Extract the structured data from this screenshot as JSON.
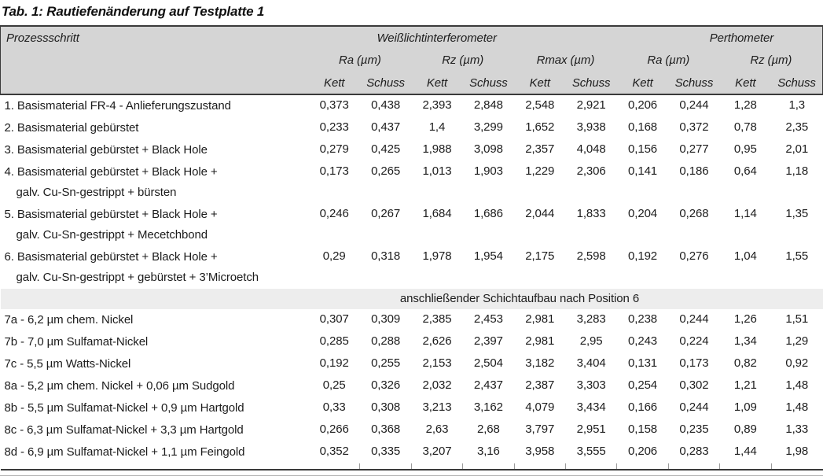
{
  "title": "Tab. 1: Rautiefenänderung auf Testplatte 1",
  "header": {
    "process_step": "Prozessschritt",
    "groups": [
      {
        "label": "Weißlichtinterferometer",
        "metrics": [
          "Ra (µm)",
          "Rz (µm)",
          "Rmax (µm)"
        ]
      },
      {
        "label": "Perthometer",
        "metrics": [
          "Ra (µm)",
          "Rz (µm)"
        ]
      }
    ],
    "kett": "Kett",
    "schuss": "Schuss"
  },
  "divider": {
    "label": "anschließender Schichtaufbau nach Position 6"
  },
  "rows_top": [
    {
      "label_lines": [
        "1. Basismaterial FR-4 - Anlieferungszustand"
      ],
      "values": [
        "0,373",
        "0,438",
        "2,393",
        "2,848",
        "2,548",
        "2,921",
        "0,206",
        "0,244",
        "1,28",
        "1,3"
      ]
    },
    {
      "label_lines": [
        "2. Basismaterial gebürstet"
      ],
      "values": [
        "0,233",
        "0,437",
        "1,4",
        "3,299",
        "1,652",
        "3,938",
        "0,168",
        "0,372",
        "0,78",
        "2,35"
      ]
    },
    {
      "label_lines": [
        "3. Basismaterial gebürstet + Black Hole"
      ],
      "values": [
        "0,279",
        "0,425",
        "1,988",
        "3,098",
        "2,357",
        "4,048",
        "0,156",
        "0,277",
        "0,95",
        "2,01"
      ]
    },
    {
      "label_lines": [
        "4. Basismaterial gebürstet + Black Hole +",
        "galv. Cu-Sn-gestrippt + bürsten"
      ],
      "values": [
        "0,173",
        "0,265",
        "1,013",
        "1,903",
        "1,229",
        "2,306",
        "0,141",
        "0,186",
        "0,64",
        "1,18"
      ]
    },
    {
      "label_lines": [
        "5. Basismaterial gebürstet + Black Hole +",
        "galv. Cu-Sn-gestrippt + Mecetchbond"
      ],
      "values": [
        "0,246",
        "0,267",
        "1,684",
        "1,686",
        "2,044",
        "1,833",
        "0,204",
        "0,268",
        "1,14",
        "1,35"
      ]
    },
    {
      "label_lines": [
        "6. Basismaterial gebürstet + Black Hole +",
        "galv. Cu-Sn-gestrippt + gebürstet + 3’Microetch"
      ],
      "values": [
        "0,29",
        "0,318",
        "1,978",
        "1,954",
        "2,175",
        "2,598",
        "0,192",
        "0,276",
        "1,04",
        "1,55"
      ]
    }
  ],
  "rows_bottom": [
    {
      "label_lines": [
        "7a - 6,2 µm chem. Nickel"
      ],
      "values": [
        "0,307",
        "0,309",
        "2,385",
        "2,453",
        "2,981",
        "3,283",
        "0,238",
        "0,244",
        "1,26",
        "1,51"
      ]
    },
    {
      "label_lines": [
        "7b - 7,0 µm Sulfamat-Nickel"
      ],
      "values": [
        "0,285",
        "0,288",
        "2,626",
        "2,397",
        "2,981",
        "2,95",
        "0,243",
        "0,224",
        "1,34",
        "1,29"
      ]
    },
    {
      "label_lines": [
        "7c - 5,5 µm Watts-Nickel"
      ],
      "values": [
        "0,192",
        "0,255",
        "2,153",
        "2,504",
        "3,182",
        "3,404",
        "0,131",
        "0,173",
        "0,82",
        "0,92"
      ]
    },
    {
      "label_lines": [
        "8a - 5,2 µm chem. Nickel + 0,06 µm Sudgold"
      ],
      "values": [
        "0,25",
        "0,326",
        "2,032",
        "2,437",
        "2,387",
        "3,303",
        "0,254",
        "0,302",
        "1,21",
        "1,48"
      ]
    },
    {
      "label_lines": [
        "8b - 5,5 µm Sulfamat-Nickel + 0,9 µm Hartgold"
      ],
      "values": [
        "0,33",
        "0,308",
        "3,213",
        "3,162",
        "4,079",
        "3,434",
        "0,166",
        "0,244",
        "1,09",
        "1,48"
      ]
    },
    {
      "label_lines": [
        "8c - 6,3 µm Sulfamat-Nickel + 3,3 µm Hartgold"
      ],
      "values": [
        "0,266",
        "0,368",
        "2,63",
        "2,68",
        "3,797",
        "2,951",
        "0,158",
        "0,235",
        "0,89",
        "1,33"
      ]
    },
    {
      "label_lines": [
        "8d - 6,9 µm Sulfamat-Nickel + 1,1 µm Feingold"
      ],
      "values": [
        "0,352",
        "0,335",
        "3,207",
        "3,16",
        "3,958",
        "3,555",
        "0,206",
        "0,283",
        "1,44",
        "1,98"
      ]
    }
  ],
  "colors": {
    "header_bg": "#d5d5d5",
    "divider_bg": "#ededed",
    "rule_dark": "#3a3a3a",
    "rule_light": "#b3b3b3",
    "text": "#1c1c1c"
  }
}
